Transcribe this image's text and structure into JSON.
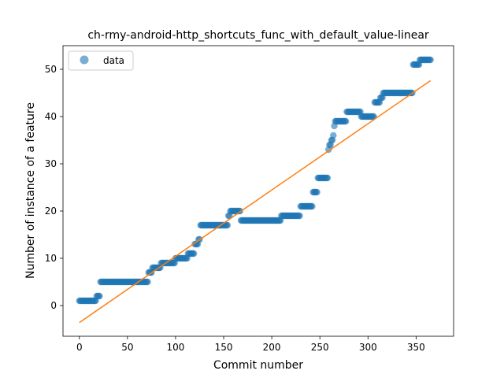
{
  "chart_data": {
    "type": "scatter",
    "title": "ch-rmy-android-http_shortcuts_func_with_default_value-linear",
    "xlabel": "Commit number",
    "ylabel": "Number of instance of a feature",
    "xlim": [
      -17,
      389
    ],
    "ylim": [
      -6.5,
      55
    ],
    "xticks": [
      0,
      50,
      100,
      150,
      200,
      250,
      300,
      350
    ],
    "yticks": [
      0,
      10,
      20,
      30,
      40,
      50
    ],
    "grid": false,
    "legend": {
      "position": "top-left",
      "entries": [
        "data"
      ]
    },
    "colors": {
      "points": "#1f77b4",
      "fit_line": "#ff7f0e"
    },
    "series": [
      {
        "name": "data",
        "kind": "scatter",
        "steps": [
          [
            0,
            1
          ],
          [
            18,
            2
          ],
          [
            22,
            5
          ],
          [
            72,
            7
          ],
          [
            76,
            8
          ],
          [
            85,
            9
          ],
          [
            100,
            10
          ],
          [
            113,
            11
          ],
          [
            120,
            13
          ],
          [
            124,
            14
          ],
          [
            126,
            17
          ],
          [
            155,
            19
          ],
          [
            157,
            20
          ],
          [
            168,
            18
          ],
          [
            210,
            19
          ],
          [
            230,
            21
          ],
          [
            243,
            24
          ],
          [
            248,
            27
          ],
          [
            259,
            33
          ],
          [
            260,
            34
          ],
          [
            262,
            35
          ],
          [
            264,
            36
          ],
          [
            265,
            38
          ],
          [
            266,
            39
          ],
          [
            278,
            41
          ],
          [
            293,
            40
          ],
          [
            307,
            43
          ],
          [
            313,
            44
          ],
          [
            316,
            45
          ],
          [
            347,
            51
          ],
          [
            354,
            52
          ],
          [
            365,
            52
          ]
        ]
      },
      {
        "kind": "line",
        "points": [
          [
            0,
            -3.6
          ],
          [
            365,
            47.6
          ]
        ]
      }
    ]
  }
}
